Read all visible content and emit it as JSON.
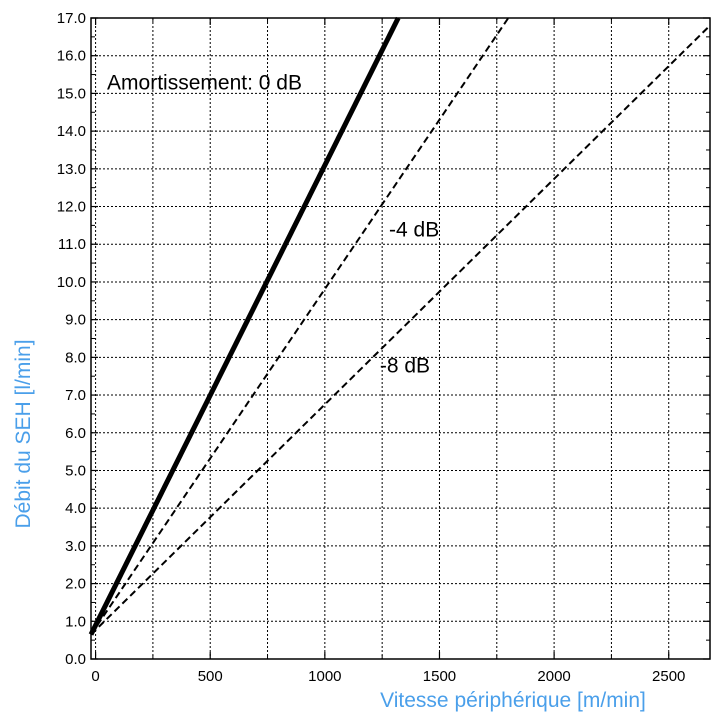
{
  "chart_data": {
    "type": "line",
    "xlabel": "Vitesse périphérique [m/min]",
    "ylabel": "Débit du SEH [l/min]",
    "xlim": [
      -20,
      2680
    ],
    "ylim": [
      0,
      17
    ],
    "x_ticks": [
      0,
      500,
      1000,
      1500,
      2000,
      2500
    ],
    "x_tick_labels": [
      "0",
      "500",
      "1000",
      "1500",
      "2000",
      "2500"
    ],
    "y_ticks": [
      0,
      1,
      2,
      3,
      4,
      5,
      6,
      7,
      8,
      9,
      10,
      11,
      12,
      13,
      14,
      15,
      16,
      17
    ],
    "y_tick_labels": [
      "0.0",
      "1.0",
      "2.0",
      "3.0",
      "4.0",
      "5.0",
      "6.0",
      "7.0",
      "8.0",
      "9.0",
      "10.0",
      "11.0",
      "12.0",
      "13.0",
      "14.0",
      "15.0",
      "16.0",
      "17.0"
    ],
    "grid": true,
    "series": [
      {
        "x": [
          -20,
          1320
        ],
        "y": [
          0.65,
          17.0
        ],
        "style": "solid"
      },
      {
        "x": [
          -20,
          1800
        ],
        "y": [
          0.65,
          17.0
        ],
        "style": "dashed"
      },
      {
        "x": [
          -20,
          2680
        ],
        "y": [
          0.65,
          16.8
        ],
        "style": "dashed"
      }
    ],
    "annotations": [
      {
        "text": "Amortissement: 0 dB",
        "x": 50,
        "y": 15.1
      },
      {
        "text": "-4 dB",
        "x": 1280,
        "y": 11.2
      },
      {
        "text": "-8 dB",
        "x": 1240,
        "y": 7.6
      }
    ],
    "colors": {
      "axis_title": "#4a9fea",
      "line": "#000000",
      "grid": "#000000"
    }
  }
}
